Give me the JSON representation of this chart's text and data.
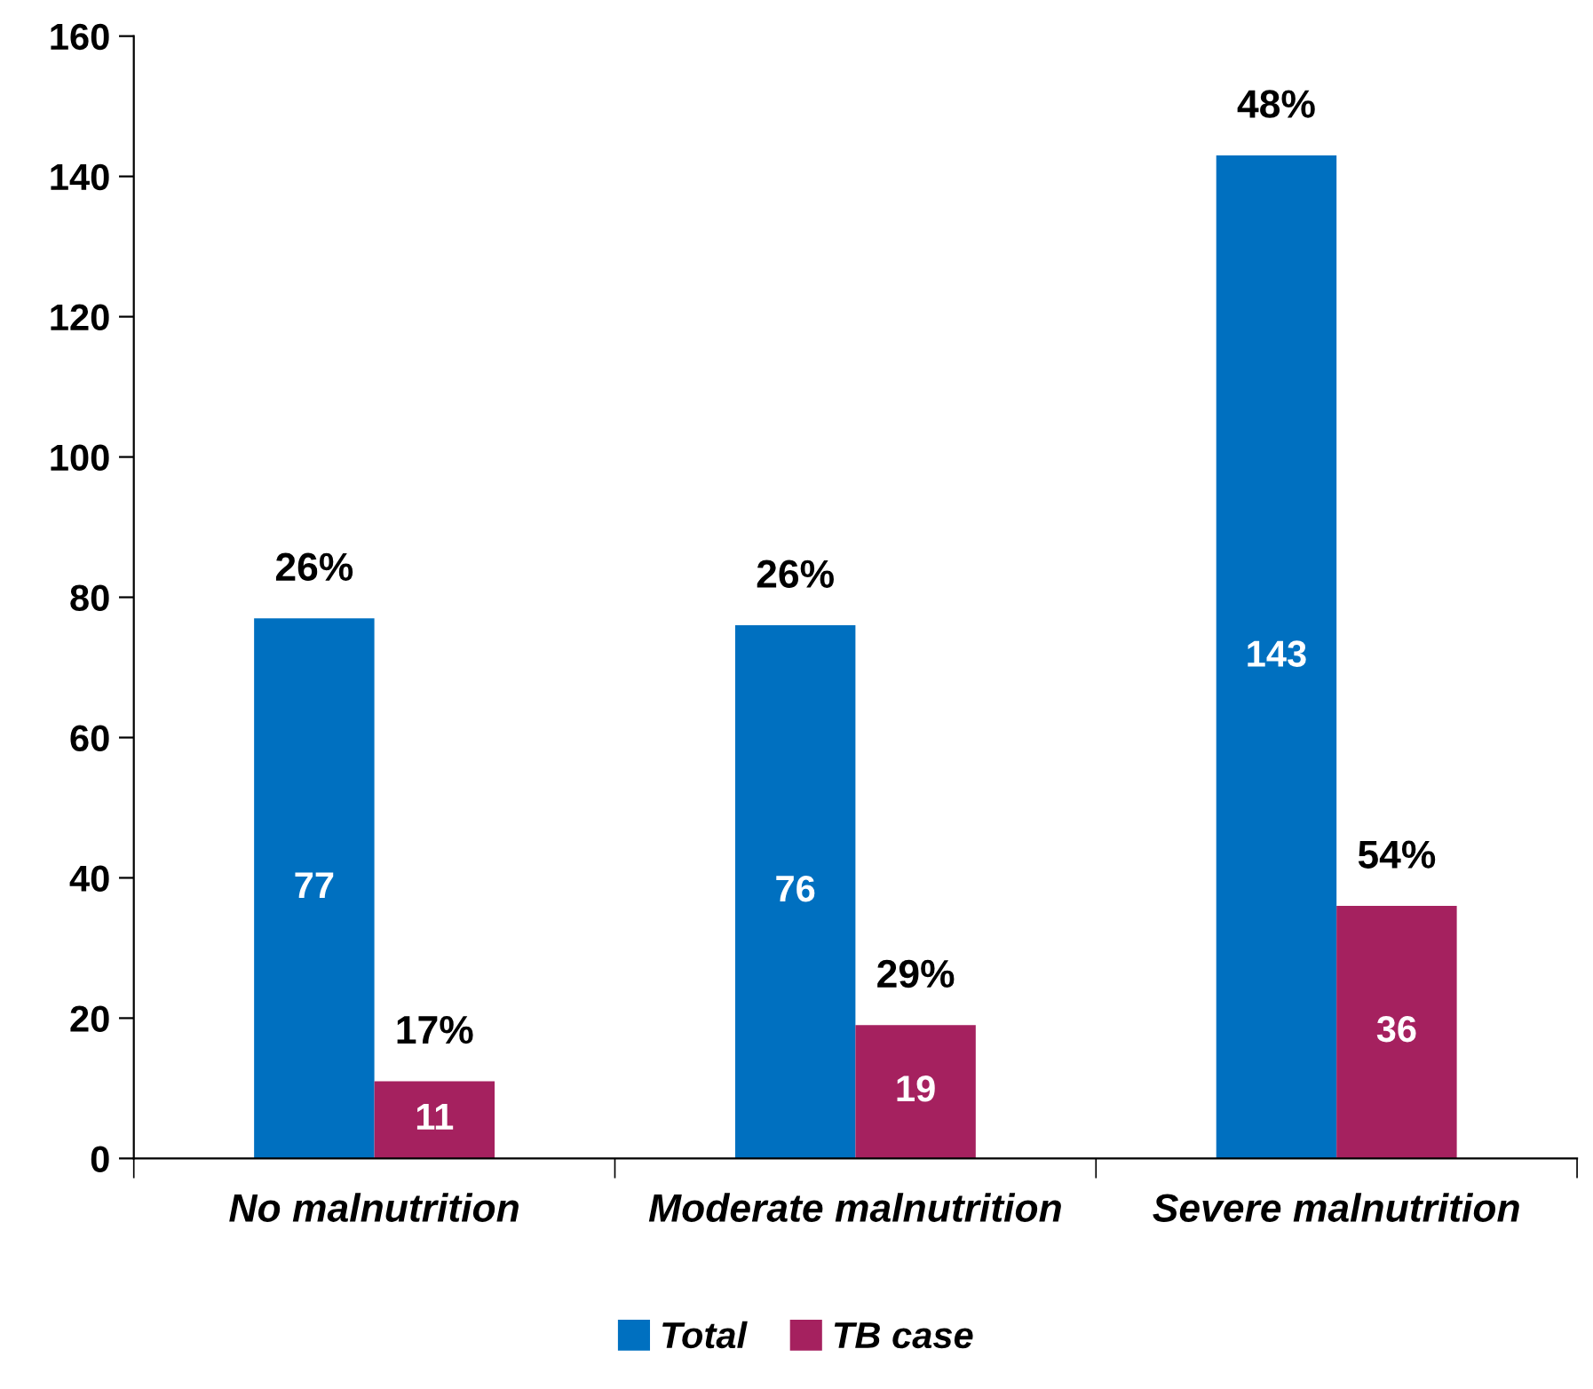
{
  "chart_data": {
    "type": "bar",
    "categories": [
      "No malnutrition",
      "Moderate malnutrition",
      "Severe malnutrition"
    ],
    "series": [
      {
        "name": "Total",
        "color": "#0070c0",
        "values": [
          77,
          76,
          143
        ]
      },
      {
        "name": "TB case",
        "color": "#a5215f",
        "values": [
          11,
          19,
          36
        ]
      }
    ],
    "ylim": [
      0,
      160
    ],
    "yticks": [
      0,
      20,
      40,
      60,
      80,
      100,
      120,
      140,
      160
    ],
    "grid": false,
    "legend": "bottom",
    "data_labels": true,
    "annotations": [
      {
        "text": "26%",
        "x": "No malnutrition",
        "y": 77
      },
      {
        "text": "17%",
        "x": "No malnutrition",
        "y": 11
      },
      {
        "text": "26%",
        "x": "Moderate malnutrition",
        "y": 76
      },
      {
        "text": "29%",
        "x": "Moderate malnutrition",
        "y": 19
      },
      {
        "text": "48%",
        "x": "Severe malnutrition",
        "y": 143
      },
      {
        "text": "54%",
        "x": "Severe malnutrition",
        "y": 36
      }
    ]
  }
}
